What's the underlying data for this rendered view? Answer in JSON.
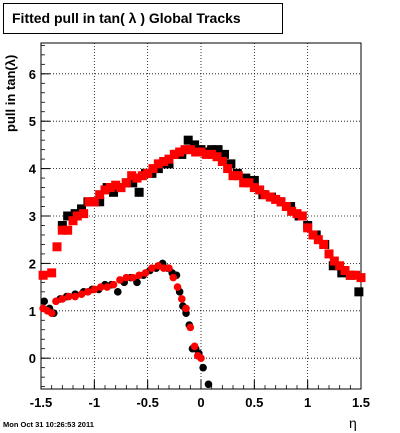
{
  "title": "Fitted pull in tan( λ )  Global Tracks",
  "timestamp": "Mon Oct 31 10:26:53 2011",
  "chart_data": {
    "type": "scatter",
    "title": "Fitted pull in tan( λ )  Global Tracks",
    "xlabel": "η",
    "ylabel": "pull in tan(λ)",
    "xlim": [
      -1.5,
      1.5
    ],
    "ylim": [
      -0.65,
      6.65
    ],
    "grid": true,
    "xticks": [
      "-1.5",
      "-1",
      "-0.5",
      "0",
      "0.5",
      "1",
      "1.5"
    ],
    "yticks": [
      "0",
      "1",
      "2",
      "3",
      "4",
      "5",
      "6"
    ],
    "series": [
      {
        "marker": "square",
        "color": "#000000",
        "x": [
          -1.3,
          -1.25,
          -1.18,
          -1.12,
          -1.06,
          -1.0,
          -0.95,
          -0.88,
          -0.82,
          -0.75,
          -0.7,
          -0.64,
          -0.58,
          -0.52,
          -0.46,
          -0.4,
          -0.35,
          -0.3,
          -0.24,
          -0.18,
          -0.12,
          -0.06,
          0.0,
          0.05,
          0.1,
          0.16,
          0.22,
          0.28,
          0.34,
          0.42,
          0.5,
          0.58,
          0.66,
          0.75,
          0.84,
          0.92,
          1.0,
          1.08,
          1.16,
          1.24,
          1.32,
          1.4,
          1.48
        ],
        "y": [
          2.8,
          3.0,
          3.05,
          3.15,
          3.3,
          3.3,
          3.3,
          3.6,
          3.5,
          3.6,
          3.7,
          3.7,
          3.5,
          3.9,
          3.9,
          4.0,
          4.1,
          4.1,
          4.3,
          4.3,
          4.6,
          4.5,
          4.4,
          4.35,
          4.4,
          4.4,
          4.3,
          4.1,
          3.9,
          3.8,
          3.75,
          3.45,
          3.4,
          3.3,
          3.2,
          3.0,
          2.8,
          2.6,
          2.4,
          1.95,
          1.8,
          1.75,
          1.4
        ]
      },
      {
        "marker": "square",
        "color": "#ff0000",
        "x": [
          -1.48,
          -1.4,
          -1.35,
          -1.3,
          -1.25,
          -1.2,
          -1.16,
          -1.1,
          -1.05,
          -1.0,
          -0.95,
          -0.9,
          -0.85,
          -0.8,
          -0.75,
          -0.7,
          -0.65,
          -0.6,
          -0.55,
          -0.5,
          -0.45,
          -0.4,
          -0.35,
          -0.3,
          -0.25,
          -0.2,
          -0.15,
          -0.1,
          -0.05,
          0.0,
          0.05,
          0.1,
          0.15,
          0.2,
          0.25,
          0.3,
          0.35,
          0.4,
          0.45,
          0.5,
          0.55,
          0.6,
          0.65,
          0.7,
          0.75,
          0.8,
          0.85,
          0.9,
          0.95,
          1.0,
          1.05,
          1.1,
          1.15,
          1.2,
          1.25,
          1.3,
          1.35,
          1.4,
          1.45,
          1.5
        ],
        "y": [
          1.75,
          1.8,
          2.35,
          2.7,
          2.7,
          2.9,
          3.0,
          3.05,
          3.3,
          3.3,
          3.45,
          3.55,
          3.6,
          3.65,
          3.6,
          3.7,
          3.85,
          3.8,
          3.85,
          3.9,
          4.0,
          4.1,
          4.15,
          4.2,
          4.3,
          4.35,
          4.4,
          4.4,
          4.35,
          4.35,
          4.3,
          4.3,
          4.25,
          4.15,
          4.0,
          3.85,
          3.85,
          3.7,
          3.7,
          3.6,
          3.55,
          3.45,
          3.4,
          3.35,
          3.3,
          3.2,
          3.1,
          3.05,
          3.0,
          2.75,
          2.6,
          2.5,
          2.4,
          2.2,
          2.05,
          1.95,
          1.85,
          1.75,
          1.75,
          1.7
        ]
      },
      {
        "marker": "circle",
        "color": "#000000",
        "x": [
          -1.47,
          -1.42,
          -1.38,
          -1.32,
          -1.26,
          -1.18,
          -1.1,
          -1.02,
          -0.96,
          -0.9,
          -0.84,
          -0.78,
          -0.72,
          -0.66,
          -0.6,
          -0.54,
          -0.48,
          -0.42,
          -0.36,
          -0.31,
          -0.27,
          -0.23,
          -0.2,
          -0.17,
          -0.14,
          -0.11,
          -0.08,
          -0.05,
          -0.02,
          0.02,
          0.07
        ],
        "y": [
          1.2,
          1.05,
          0.95,
          1.25,
          1.3,
          1.35,
          1.4,
          1.45,
          1.45,
          1.55,
          1.55,
          1.4,
          1.6,
          1.7,
          1.6,
          1.75,
          1.85,
          1.9,
          2.0,
          1.9,
          1.8,
          1.75,
          1.4,
          1.1,
          0.95,
          0.7,
          0.2,
          0.2,
          0.1,
          -0.2,
          -0.55
        ]
      },
      {
        "marker": "circle",
        "color": "#ff0000",
        "x": [
          -1.48,
          -1.44,
          -1.4,
          -1.36,
          -1.3,
          -1.24,
          -1.18,
          -1.12,
          -1.06,
          -1.0,
          -0.94,
          -0.88,
          -0.82,
          -0.76,
          -0.7,
          -0.64,
          -0.58,
          -0.52,
          -0.46,
          -0.4,
          -0.35,
          -0.3,
          -0.26,
          -0.22,
          -0.18,
          -0.14,
          -0.1,
          -0.06,
          -0.03,
          0.0
        ],
        "y": [
          1.05,
          1.0,
          0.95,
          1.2,
          1.25,
          1.3,
          1.3,
          1.35,
          1.4,
          1.45,
          1.5,
          1.5,
          1.55,
          1.65,
          1.7,
          1.7,
          1.75,
          1.8,
          1.9,
          1.95,
          1.9,
          1.9,
          1.7,
          1.5,
          1.25,
          1.05,
          0.65,
          0.25,
          0.05,
          0.0
        ]
      }
    ]
  }
}
